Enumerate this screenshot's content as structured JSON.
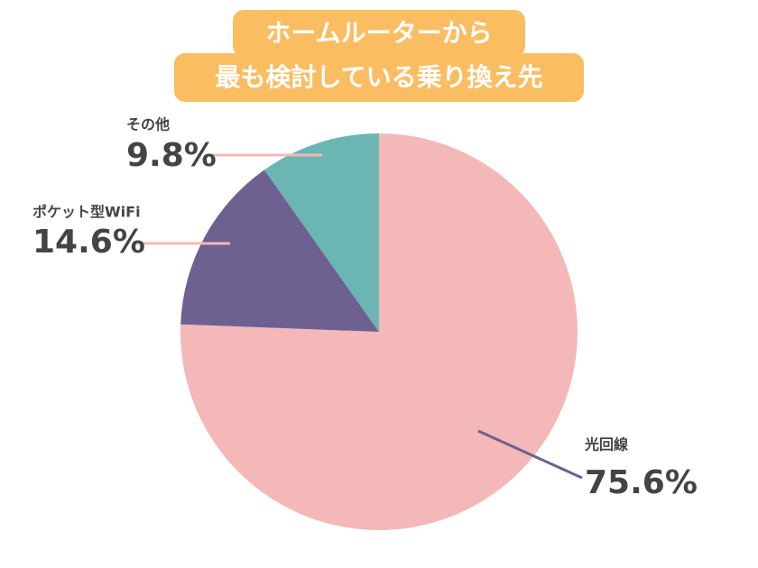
{
  "chart_data": {
    "type": "pie",
    "title": [
      "ホームルーターから",
      "最も検討している乗り換え先"
    ],
    "categories": [
      "光回線",
      "ポケット型WiFi",
      "その他"
    ],
    "values": [
      75.6,
      14.6,
      9.8
    ],
    "value_labels": [
      "75.6%",
      "14.6%",
      "9.8%"
    ],
    "colors": [
      "#f4b8b8",
      "#6e6191",
      "#6bb5b3"
    ]
  }
}
